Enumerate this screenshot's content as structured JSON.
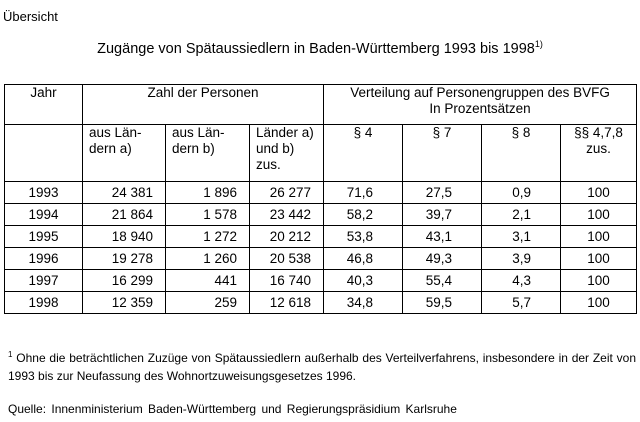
{
  "heading": "Übersicht",
  "title": {
    "text": "Zugänge von Spätaussiedlern in Baden-Württemberg 1993 bis 1998",
    "footnote_mark": "1)"
  },
  "table": {
    "header": {
      "jahr": "Jahr",
      "zahl": "Zahl der Personen",
      "verteilung_line1": "Verteilung auf Personengruppen des BVFG",
      "verteilung_line2": "In Prozentsätzen"
    },
    "subheader": {
      "laender_a": "aus Län-dern a)",
      "laender_b": "aus Län-dern b)",
      "laender_ab": "Länder a) und b) zus.",
      "p4": "§ 4",
      "p7": "§ 7",
      "p8": "§ 8",
      "p478": "§§ 4,7,8 zus."
    },
    "rows": [
      [
        "1993",
        "24 381",
        "1 896",
        "26 277",
        "71,6",
        "27,5",
        "0,9",
        "100"
      ],
      [
        "1994",
        "21 864",
        "1 578",
        "23 442",
        "58,2",
        "39,7",
        "2,1",
        "100"
      ],
      [
        "1995",
        "18 940",
        "1 272",
        "20 212",
        "53,8",
        "43,1",
        "3,1",
        "100"
      ],
      [
        "1996",
        "19 278",
        "1 260",
        "20 538",
        "46,8",
        "49,3",
        "3,9",
        "100"
      ],
      [
        "1997",
        "16 299",
        "441",
        "16 740",
        "40,3",
        "55,4",
        "4,3",
        "100"
      ],
      [
        "1998",
        "12 359",
        "259",
        "12 618",
        "34,8",
        "59,5",
        "5,7",
        "100"
      ]
    ]
  },
  "footnote": {
    "mark": "1",
    "text": "Ohne die beträchtlichen Zuzüge von Spätaussiedlern außerhalb des Verteilverfahrens, insbesondere in der Zeit von 1993 bis zur Neufassung des Wohnortzuweisungsgesetzes 1996."
  },
  "source": "Quelle: Innenministerium Baden-Württemberg und Regierungspräsidium Karlsruhe"
}
